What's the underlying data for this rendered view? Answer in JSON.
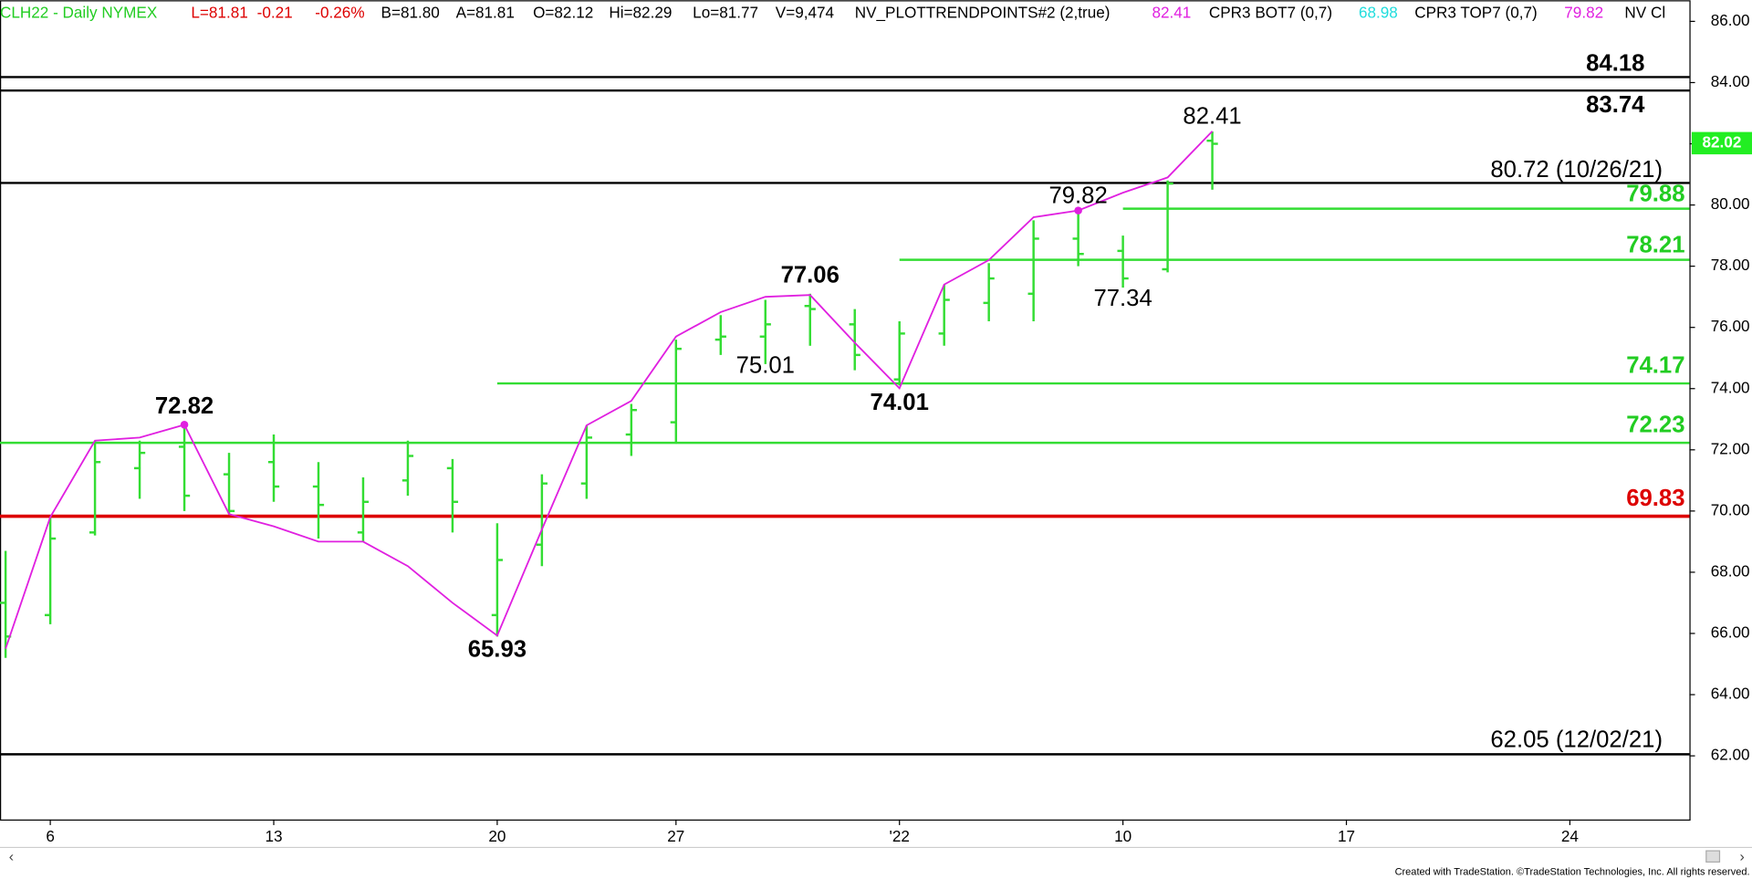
{
  "chart_data": {
    "type": "ohlc",
    "header": [
      {
        "text": "CLH22 - Daily  NYMEX",
        "color": "#22cc22"
      },
      {
        "text": "L=81.81",
        "color": "#dd0000"
      },
      {
        "text": "-0.21",
        "color": "#dd0000"
      },
      {
        "text": "-0.26%",
        "color": "#dd0000"
      },
      {
        "text": "B=81.80",
        "color": "#000000"
      },
      {
        "text": "A=81.81",
        "color": "#000000"
      },
      {
        "text": "O=82.12",
        "color": "#000000"
      },
      {
        "text": "Hi=82.29",
        "color": "#000000"
      },
      {
        "text": "Lo=81.77",
        "color": "#000000"
      },
      {
        "text": "V=9,474",
        "color": "#000000"
      },
      {
        "text": "NV_PLOTTRENDPOINTS#2 (2,true)",
        "color": "#000000"
      },
      {
        "text": "82.41",
        "color": "#e020e0"
      },
      {
        "text": "CPR3 BOT7 (0,7)",
        "color": "#000000"
      },
      {
        "text": "68.98",
        "color": "#20dddd"
      },
      {
        "text": "CPR3 TOP7 (0,7)",
        "color": "#000000"
      },
      {
        "text": "79.82",
        "color": "#e020e0"
      },
      {
        "text": "NV Cl",
        "color": "#000000"
      }
    ],
    "categories": [
      null,
      "6",
      null,
      null,
      null,
      null,
      "13",
      null,
      null,
      null,
      null,
      "20",
      null,
      null,
      null,
      "27",
      null,
      null,
      null,
      null,
      "'22",
      null,
      null,
      null,
      null,
      "10",
      null,
      null,
      null,
      null,
      "17",
      null,
      null,
      null,
      null,
      "24",
      null,
      null
    ],
    "open": [
      67.0,
      66.6,
      69.3,
      71.4,
      72.1,
      71.2,
      71.6,
      70.8,
      69.3,
      71.0,
      71.4,
      66.6,
      68.9,
      70.9,
      72.5,
      72.9,
      75.6,
      75.7,
      76.7,
      76.1,
      74.3,
      75.8,
      76.8,
      77.1,
      78.9,
      78.5,
      77.9,
      82.1,
      null,
      null,
      null,
      null,
      null,
      null,
      null,
      null,
      null,
      null
    ],
    "high": [
      68.7,
      69.8,
      72.3,
      72.3,
      72.7,
      71.9,
      72.5,
      71.6,
      71.1,
      72.3,
      71.7,
      69.6,
      71.2,
      72.8,
      73.5,
      75.6,
      76.4,
      76.9,
      77.1,
      76.6,
      76.2,
      77.4,
      78.1,
      79.5,
      79.9,
      79.0,
      80.8,
      82.4,
      null,
      null,
      null,
      null,
      null,
      null,
      null,
      null,
      null,
      null
    ],
    "low": [
      65.2,
      66.3,
      69.2,
      70.4,
      70.0,
      69.9,
      70.3,
      69.1,
      69.0,
      70.5,
      69.3,
      65.9,
      68.2,
      70.4,
      71.8,
      72.2,
      75.1,
      74.8,
      75.4,
      74.6,
      74.1,
      75.4,
      76.2,
      76.2,
      78.0,
      77.3,
      77.8,
      80.5,
      null,
      null,
      null,
      null,
      null,
      null,
      null,
      null,
      null,
      null
    ],
    "close": [
      65.9,
      69.1,
      71.6,
      71.9,
      70.5,
      70.0,
      70.8,
      70.2,
      70.3,
      71.8,
      70.3,
      68.4,
      70.9,
      72.4,
      73.3,
      75.3,
      75.7,
      76.1,
      76.6,
      75.1,
      75.8,
      76.9,
      77.6,
      78.9,
      78.4,
      77.6,
      80.7,
      82.0,
      null,
      null,
      null,
      null,
      null,
      null,
      null,
      null,
      null,
      null
    ],
    "color": "#33dd33",
    "trend": {
      "color": "#e020e0",
      "values": [
        65.5,
        69.8,
        72.3,
        72.4,
        72.82,
        69.9,
        69.5,
        69.0,
        69.0,
        68.2,
        67.0,
        65.93,
        69.4,
        72.8,
        73.6,
        75.7,
        76.5,
        77.0,
        77.06,
        75.5,
        74.01,
        77.4,
        78.2,
        79.6,
        79.82,
        80.4,
        80.9,
        82.41,
        null,
        null,
        null,
        null,
        null,
        null,
        null,
        null,
        null,
        null
      ]
    },
    "levels": [
      {
        "value": 84.18,
        "color": "#000000"
      },
      {
        "value": 83.74,
        "color": "#000000"
      },
      {
        "value": 80.72,
        "label": "80.72 (10/26/21)",
        "color": "#000000"
      },
      {
        "value": 79.88,
        "color": "#33dd33"
      },
      {
        "value": 78.21,
        "color": "#33dd33"
      },
      {
        "value": 74.17,
        "color": "#33dd33"
      },
      {
        "value": 72.23,
        "color": "#33dd33"
      },
      {
        "value": 69.83,
        "color": "#dd0000"
      },
      {
        "value": 62.05,
        "label": "62.05 (12/02/21)",
        "color": "#000000"
      }
    ],
    "annotations": [
      72.82,
      65.93,
      77.06,
      75.01,
      74.01,
      79.82,
      77.34,
      82.41
    ],
    "last_price": 82.02,
    "ylim": [
      59.92,
      86.69
    ],
    "yticks": [
      {
        "value": 62,
        "label": "62.00"
      },
      {
        "value": 64,
        "label": "64.00"
      },
      {
        "value": 66,
        "label": "66.00"
      },
      {
        "value": 68,
        "label": "68.00"
      },
      {
        "value": 70,
        "label": "70.00"
      },
      {
        "value": 72,
        "label": "72.00"
      },
      {
        "value": 74,
        "label": "74.00"
      },
      {
        "value": 76,
        "label": "76.00"
      },
      {
        "value": 78,
        "label": "78.00"
      },
      {
        "value": 80,
        "label": "80.00"
      },
      {
        "value": 82,
        "label": "82.00"
      },
      {
        "value": 84,
        "label": "84.00"
      },
      {
        "value": 86,
        "label": "86.00"
      }
    ],
    "footer": "Created with TradeStation. ©TradeStation Technologies, Inc. All rights reserved."
  }
}
